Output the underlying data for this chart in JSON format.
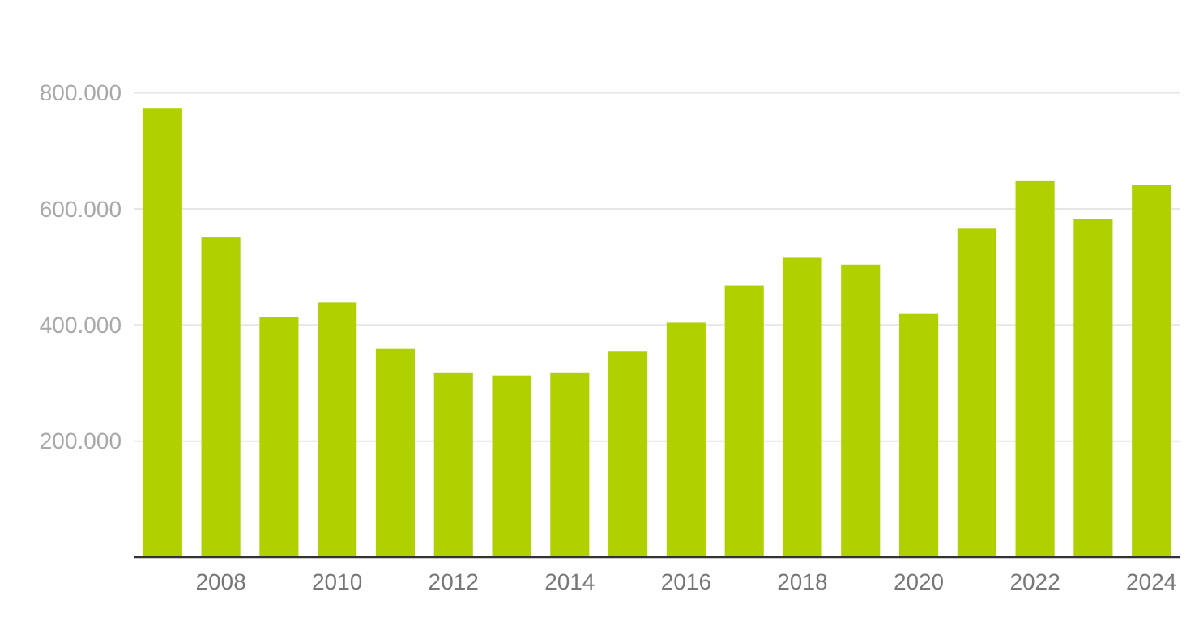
{
  "chart_data": {
    "type": "bar",
    "categories": [
      null,
      "2008",
      null,
      "2010",
      null,
      "2012",
      null,
      "2014",
      null,
      "2016",
      null,
      "2018",
      null,
      "2020",
      null,
      "2022",
      null,
      "2024"
    ],
    "values": [
      774000,
      551000,
      413000,
      439000,
      359000,
      317000,
      313000,
      317000,
      354000,
      404000,
      468000,
      517000,
      504000,
      419000,
      566000,
      649000,
      582000,
      641000
    ],
    "color": "#b0d000",
    "ylim": [
      0,
      800000
    ],
    "yticks": [
      {
        "value": 200000,
        "label": "200.000"
      },
      {
        "value": 400000,
        "label": "400.000"
      },
      {
        "value": 600000,
        "label": "600.000"
      },
      {
        "value": 800000,
        "label": "800.000"
      }
    ],
    "grid": "y"
  }
}
